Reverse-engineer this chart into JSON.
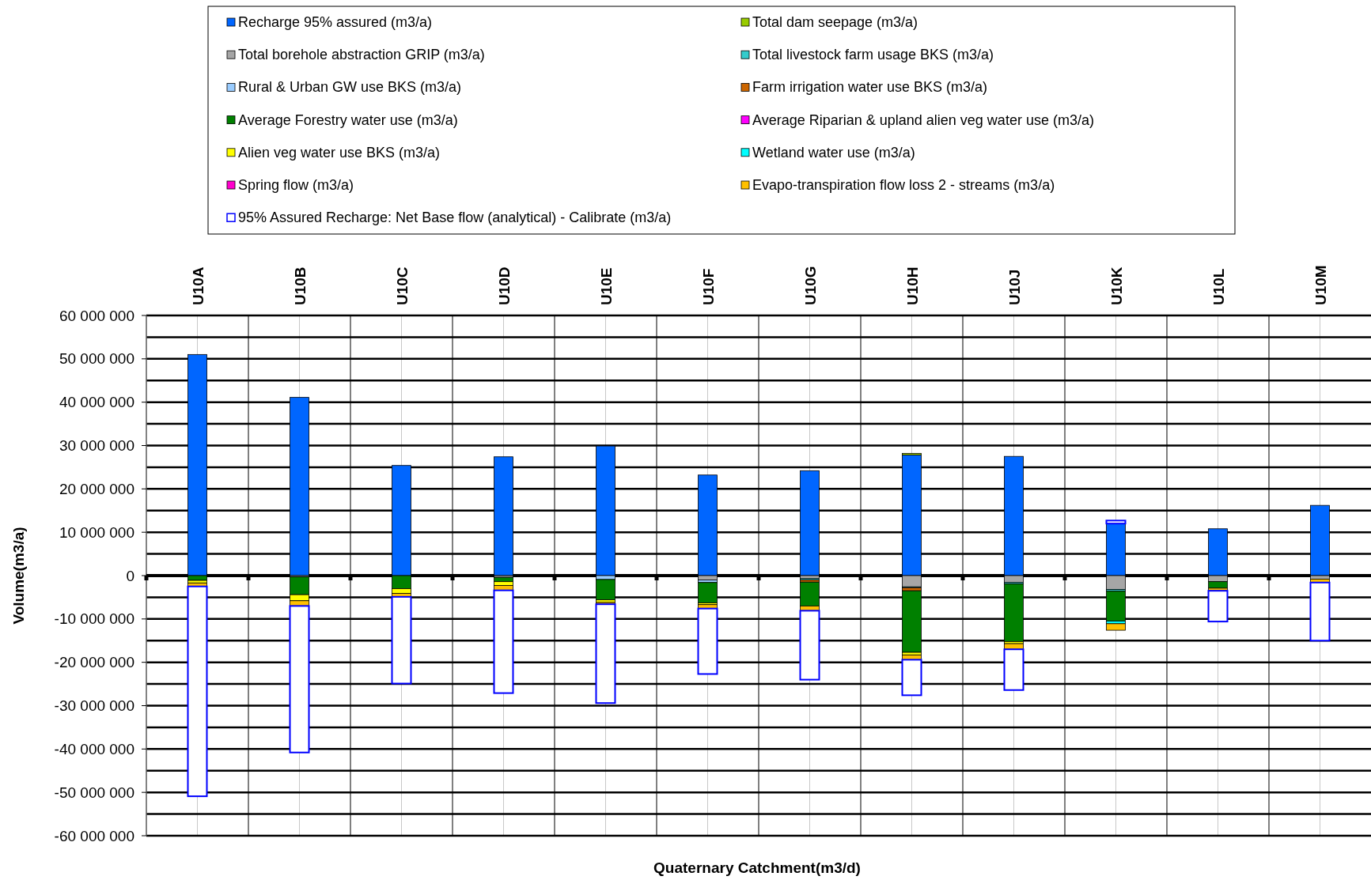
{
  "chart_data": {
    "type": "bar",
    "stacked": true,
    "xlabel": "Quaternary Catchment(m3/d)",
    "ylabel": "Volume(m3/a)",
    "legend": "top",
    "grid": true,
    "categories": [
      "U10A",
      "U10B",
      "U10C",
      "U10D",
      "U10E",
      "U10F",
      "U10G",
      "U10H",
      "U10J",
      "U10K",
      "U10L",
      "U10M"
    ],
    "ylim": [
      -60000000,
      60000000
    ],
    "yticks": [
      {
        "value": -60000000,
        "label": "-60 000 000"
      },
      {
        "value": -55000000,
        "label": null
      },
      {
        "value": -50000000,
        "label": "-50 000 000"
      },
      {
        "value": -45000000,
        "label": null
      },
      {
        "value": -40000000,
        "label": "-40 000 000"
      },
      {
        "value": -35000000,
        "label": null
      },
      {
        "value": -30000000,
        "label": "-30 000 000"
      },
      {
        "value": -25000000,
        "label": null
      },
      {
        "value": -20000000,
        "label": "-20 000 000"
      },
      {
        "value": -15000000,
        "label": null
      },
      {
        "value": -10000000,
        "label": "-10 000 000"
      },
      {
        "value": -5000000,
        "label": null
      },
      0,
      {
        "value": 5000000,
        "label": null
      },
      {
        "value": 10000000,
        "label": "10 000 000"
      },
      {
        "value": 15000000,
        "label": null
      },
      {
        "value": 20000000,
        "label": "20 000 000"
      },
      {
        "value": 25000000,
        "label": null
      },
      {
        "value": 30000000,
        "label": "30 000 000"
      },
      {
        "value": 35000000,
        "label": null
      },
      {
        "value": 40000000,
        "label": "40 000 000"
      },
      {
        "value": 45000000,
        "label": null
      },
      {
        "value": 50000000,
        "label": "50 000 000"
      },
      {
        "value": 55000000,
        "label": null
      },
      {
        "value": 60000000,
        "label": "60 000 000"
      }
    ],
    "series": [
      {
        "name": "Recharge 95% assured (m3/a)",
        "color": "#0066ff",
        "values": [
          51000000,
          41100000,
          25400000,
          27400000,
          29900000,
          23200000,
          24200000,
          27800000,
          27500000,
          12000000,
          10800000,
          16200000
        ]
      },
      {
        "name": "Total dam seepage (m3/a)",
        "color": "#99cc00",
        "values": [
          null,
          null,
          null,
          null,
          null,
          null,
          null,
          400000,
          null,
          null,
          null,
          null
        ]
      },
      {
        "name": "Total borehole abstraction GRIP (m3/a)",
        "color": "#a6a6a6",
        "values": [
          null,
          -300000,
          null,
          -400000,
          null,
          -1000000,
          -700000,
          -2600000,
          -1600000,
          -3200000,
          -1400000,
          -800000
        ]
      },
      {
        "name": "Total livestock farm usage BKS (m3/a)",
        "color": "#33cccc",
        "values": [
          null,
          null,
          null,
          null,
          null,
          null,
          -300000,
          -200000,
          -300000,
          -400000,
          null,
          null
        ]
      },
      {
        "name": "Rural & Urban GW use BKS (m3/a)",
        "color": "#99ccff",
        "values": [
          null,
          null,
          null,
          null,
          -900000,
          -600000,
          null,
          null,
          null,
          null,
          null,
          null
        ]
      },
      {
        "name": "Farm irrigation water use BKS (m3/a)",
        "color": "#cc6600",
        "values": [
          null,
          null,
          null,
          null,
          null,
          null,
          -500000,
          -700000,
          null,
          null,
          null,
          null
        ]
      },
      {
        "name": "Average Forestry water use (m3/a)",
        "color": "#008000",
        "values": [
          -1100000,
          -4100000,
          -3000000,
          -1000000,
          -4700000,
          -4700000,
          -5500000,
          -14200000,
          -13300000,
          -6900000,
          -1500000,
          null
        ]
      },
      {
        "name": "Average Riparian & upland alien veg water use (m3/a)",
        "color": "#ff00ff",
        "values": [
          null,
          null,
          null,
          null,
          null,
          null,
          null,
          null,
          null,
          null,
          null,
          null
        ]
      },
      {
        "name": "Alien veg water use BKS (m3/a)",
        "color": "#ffff00",
        "values": [
          -600000,
          -1400000,
          -1100000,
          -900000,
          -600000,
          -400000,
          null,
          -600000,
          -500000,
          null,
          null,
          null
        ]
      },
      {
        "name": "Wetland water use (m3/a)",
        "color": "#00ffff",
        "values": [
          null,
          null,
          null,
          null,
          null,
          null,
          null,
          null,
          null,
          -600000,
          null,
          null
        ]
      },
      {
        "name": "Spring flow (m3/a)",
        "color": "#ff00cc",
        "values": [
          null,
          null,
          null,
          null,
          null,
          null,
          null,
          null,
          null,
          null,
          null,
          null
        ]
      },
      {
        "name": "Evapo-transpiration flow loss 2 - streams (m3/a)",
        "color": "#ffc000",
        "values": [
          -800000,
          -1200000,
          -800000,
          -1100000,
          -400000,
          -900000,
          -1100000,
          -1100000,
          -1300000,
          -1500000,
          -600000,
          -800000
        ]
      },
      {
        "name": "95% Assured Recharge: Net Base flow (analytical) - Calibrate (m3/a)",
        "color": "#0000ff",
        "values": [
          -48400000,
          -33800000,
          -20000000,
          -23700000,
          -22800000,
          -15100000,
          -15900000,
          -8200000,
          -9400000,
          700000,
          -7100000,
          -13400000
        ]
      }
    ]
  }
}
